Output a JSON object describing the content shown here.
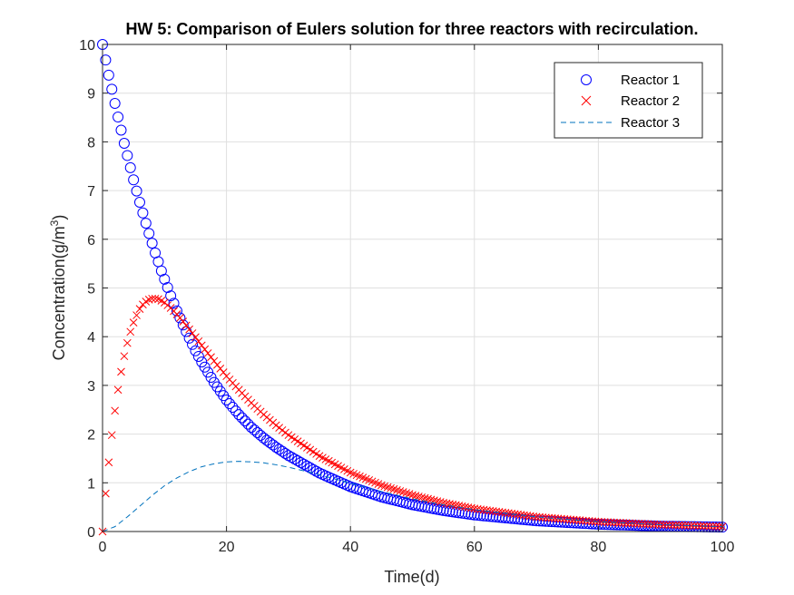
{
  "chart_data": {
    "type": "scatter",
    "title": "HW 5: Comparison of Eulers solution for three reactors with recirculation.",
    "xlabel": "Time(d)",
    "ylabel_main": "Concentration(g/m",
    "ylabel_sup": "3",
    "ylabel_tail": ")",
    "xlim": [
      0,
      100
    ],
    "ylim": [
      0,
      10
    ],
    "xticks": [
      "0",
      "20",
      "40",
      "60",
      "80",
      "100"
    ],
    "yticks": [
      "0",
      "1",
      "2",
      "3",
      "4",
      "5",
      "6",
      "7",
      "8",
      "9",
      "10"
    ],
    "grid": true,
    "legend_position": "top-right",
    "series": [
      {
        "name": "Reactor 1",
        "marker": "circle",
        "color": "#0000ff",
        "x": [
          0,
          0.5,
          1,
          1.5,
          2,
          2.5,
          3,
          3.5,
          4,
          4.5,
          5,
          5.5,
          6,
          6.5,
          7,
          7.5,
          8,
          8.5,
          9,
          9.5,
          10,
          11,
          12,
          13,
          14,
          15,
          16,
          18,
          20,
          22,
          24,
          26,
          28,
          30,
          35,
          40,
          45,
          50,
          55,
          60,
          70,
          80,
          90,
          100
        ],
        "y": [
          10.0,
          9.68,
          9.37,
          9.08,
          8.79,
          8.51,
          8.24,
          7.97,
          7.72,
          7.47,
          7.22,
          6.99,
          6.76,
          6.54,
          6.33,
          6.12,
          5.92,
          5.72,
          5.54,
          5.35,
          5.18,
          4.84,
          4.53,
          4.24,
          3.97,
          3.71,
          3.48,
          3.06,
          2.7,
          2.4,
          2.14,
          1.92,
          1.73,
          1.56,
          1.2,
          0.92,
          0.71,
          0.55,
          0.43,
          0.34,
          0.22,
          0.15,
          0.11,
          0.09
        ]
      },
      {
        "name": "Reactor 2",
        "marker": "x",
        "color": "#ff0000",
        "x": [
          0,
          0.5,
          1,
          1.5,
          2,
          2.5,
          3,
          3.5,
          4,
          4.5,
          5,
          5.5,
          6,
          6.5,
          7,
          7.5,
          8,
          8.5,
          9,
          9.5,
          10,
          11,
          12,
          13,
          14,
          15,
          16,
          18,
          20,
          22,
          24,
          26,
          28,
          30,
          35,
          40,
          45,
          50,
          55,
          60,
          70,
          80,
          90,
          100
        ],
        "y": [
          0.0,
          0.78,
          1.42,
          1.98,
          2.48,
          2.91,
          3.28,
          3.6,
          3.87,
          4.1,
          4.29,
          4.44,
          4.57,
          4.66,
          4.72,
          4.76,
          4.78,
          4.78,
          4.77,
          4.74,
          4.7,
          4.59,
          4.46,
          4.31,
          4.15,
          3.99,
          3.82,
          3.5,
          3.19,
          2.91,
          2.64,
          2.4,
          2.18,
          1.98,
          1.55,
          1.21,
          0.95,
          0.75,
          0.59,
          0.47,
          0.3,
          0.2,
          0.14,
          0.1
        ]
      },
      {
        "name": "Reactor 3",
        "marker": "dashed-line",
        "color": "#0072bd",
        "x": [
          0,
          2,
          4,
          6,
          8,
          10,
          12,
          14,
          16,
          18,
          20,
          22,
          24,
          26,
          28,
          30,
          32,
          34,
          36,
          38,
          40,
          45,
          50,
          55,
          60,
          70,
          80,
          90,
          100
        ],
        "y": [
          0.0,
          0.1,
          0.3,
          0.52,
          0.74,
          0.94,
          1.1,
          1.23,
          1.33,
          1.39,
          1.43,
          1.44,
          1.43,
          1.41,
          1.37,
          1.32,
          1.26,
          1.2,
          1.13,
          1.06,
          0.99,
          0.82,
          0.67,
          0.55,
          0.45,
          0.3,
          0.2,
          0.14,
          0.1
        ]
      }
    ]
  },
  "colors": {
    "axis": "#262626",
    "grid": "#dfdfdf"
  }
}
